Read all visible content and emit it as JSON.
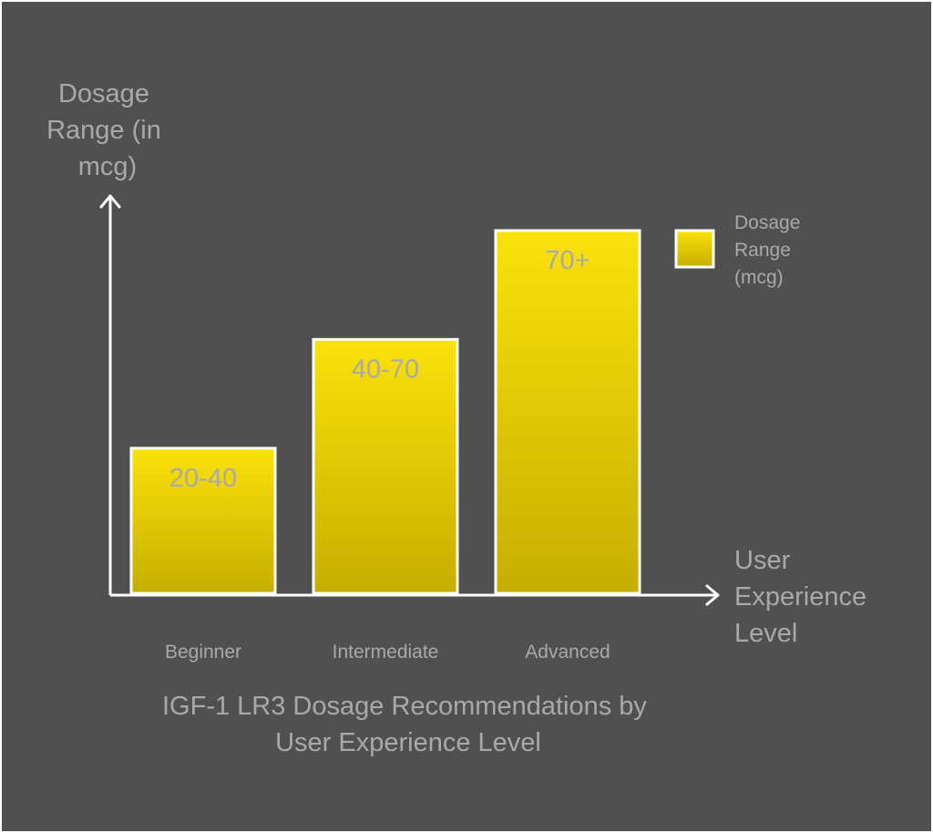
{
  "chart_data": {
    "type": "bar",
    "title": "IGF-1 LR3 Dosage Recommendations by User Experience Level",
    "title_lines": [
      "IGF-1 LR3 Dosage Recommendations by",
      "User Experience Level"
    ],
    "ylabel": "Dosage Range (in mcg)",
    "ylabel_lines": [
      "Dosage",
      "Range (in",
      "mcg)"
    ],
    "xlabel": "User Experience Level",
    "xlabel_lines": [
      "User",
      "Experience",
      "Level"
    ],
    "categories": [
      "Beginner",
      "Intermediate",
      "Advanced"
    ],
    "series": [
      {
        "name": "Dosage Range (mcg)",
        "name_lines": [
          "Dosage",
          "Range",
          "(mcg)"
        ],
        "range_labels": [
          "20-40",
          "40-70",
          "70+"
        ],
        "values": [
          40,
          70,
          100
        ]
      }
    ],
    "ylim": [
      0,
      100
    ],
    "grid": false,
    "legend": "top-right",
    "colors": {
      "background": "#505050",
      "bar_top": "#fae20a",
      "bar_bottom": "#c6ae00",
      "bar_stroke": "#ffffff",
      "axis": "#ffffff",
      "text": "#a9a9a9"
    }
  }
}
